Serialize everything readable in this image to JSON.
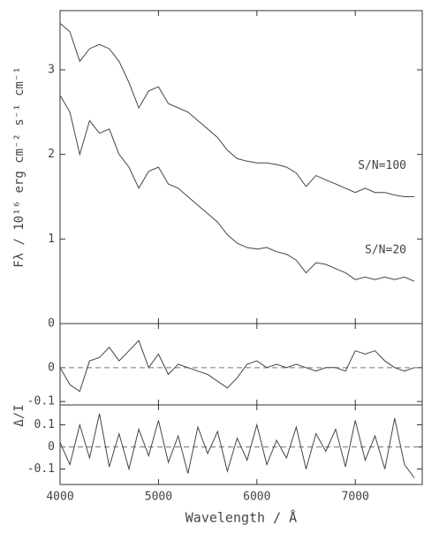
{
  "chart_data": [
    {
      "type": "line",
      "ylabel": "Fλ / 10¹⁶ erg cm⁻² s⁻¹ cm⁻¹",
      "x": [
        4000,
        4100,
        4200,
        4300,
        4400,
        4500,
        4600,
        4700,
        4800,
        4900,
        5000,
        5100,
        5200,
        5300,
        5400,
        5500,
        5600,
        5700,
        5800,
        5900,
        6000,
        6100,
        6200,
        6300,
        6400,
        6500,
        6600,
        6700,
        6800,
        6900,
        7000,
        7100,
        7200,
        7300,
        7400,
        7500,
        7600
      ],
      "series": [
        {
          "name": "S/N=100",
          "color": "#444444",
          "values": [
            3.55,
            3.45,
            3.1,
            3.25,
            3.3,
            3.25,
            3.1,
            2.85,
            2.55,
            2.75,
            2.8,
            2.6,
            2.55,
            2.5,
            2.4,
            2.3,
            2.2,
            2.05,
            1.95,
            1.92,
            1.9,
            1.9,
            1.88,
            1.85,
            1.78,
            1.62,
            1.75,
            1.7,
            1.65,
            1.6,
            1.55,
            1.6,
            1.55,
            1.55,
            1.52,
            1.5,
            1.5
          ]
        },
        {
          "name": "S/N=20",
          "color": "#444444",
          "values": [
            2.7,
            2.5,
            2.0,
            2.4,
            2.25,
            2.3,
            2.0,
            1.85,
            1.6,
            1.8,
            1.85,
            1.65,
            1.6,
            1.5,
            1.4,
            1.3,
            1.2,
            1.05,
            0.95,
            0.9,
            0.88,
            0.9,
            0.85,
            0.82,
            0.75,
            0.6,
            0.72,
            0.7,
            0.65,
            0.6,
            0.52,
            0.55,
            0.52,
            0.55,
            0.52,
            0.55,
            0.5
          ]
        }
      ],
      "xlim": [
        4000,
        7680
      ],
      "xticks": [
        4000,
        5000,
        6000,
        7000
      ],
      "xticklabels": false,
      "ylim": [
        0,
        3.7
      ],
      "yticks": [
        0,
        1,
        2,
        3
      ]
    },
    {
      "type": "line",
      "ylabel": "Δ/I",
      "x": [
        4000,
        4100,
        4200,
        4300,
        4400,
        4500,
        4600,
        4700,
        4800,
        4900,
        5000,
        5100,
        5200,
        5300,
        5400,
        5500,
        5600,
        5700,
        5800,
        5900,
        6000,
        6100,
        6200,
        6300,
        6400,
        6500,
        6600,
        6700,
        6800,
        6900,
        7000,
        7100,
        7200,
        7300,
        7400,
        7500,
        7600
      ],
      "series": [
        {
          "name": "S/N=100",
          "color": "#444444",
          "values": [
            0.0,
            -0.05,
            -0.07,
            0.02,
            0.03,
            0.06,
            0.02,
            0.05,
            0.08,
            0.0,
            0.04,
            -0.02,
            0.01,
            0.0,
            -0.01,
            -0.02,
            -0.04,
            -0.06,
            -0.03,
            0.01,
            0.02,
            0.0,
            0.01,
            0.0,
            0.01,
            0.0,
            -0.01,
            0.0,
            0.0,
            -0.01,
            0.05,
            0.04,
            0.05,
            0.02,
            0.0,
            -0.01,
            0.0
          ]
        }
      ],
      "xlim": [
        4000,
        7680
      ],
      "xticks": [
        4000,
        5000,
        6000,
        7000
      ],
      "xticklabels": false,
      "ylim": [
        -0.11,
        0.13
      ],
      "yticks": [
        0,
        -0.1
      ],
      "zero_line": true
    },
    {
      "type": "line",
      "xlabel": "Wavelength / Å",
      "x": [
        4000,
        4100,
        4200,
        4300,
        4400,
        4500,
        4600,
        4700,
        4800,
        4900,
        5000,
        5100,
        5200,
        5300,
        5400,
        5500,
        5600,
        5700,
        5800,
        5900,
        6000,
        6100,
        6200,
        6300,
        6400,
        6500,
        6600,
        6700,
        6800,
        6900,
        7000,
        7100,
        7200,
        7300,
        7400,
        7500,
        7600
      ],
      "series": [
        {
          "name": "S/N=20",
          "color": "#444444",
          "values": [
            0.02,
            -0.08,
            0.1,
            -0.05,
            0.15,
            -0.09,
            0.06,
            -0.1,
            0.08,
            -0.04,
            0.12,
            -0.07,
            0.05,
            -0.12,
            0.09,
            -0.03,
            0.07,
            -0.11,
            0.04,
            -0.06,
            0.1,
            -0.08,
            0.03,
            -0.05,
            0.09,
            -0.1,
            0.06,
            -0.02,
            0.08,
            -0.09,
            0.12,
            -0.06,
            0.05,
            -0.1,
            0.13,
            -0.08,
            -0.14
          ]
        }
      ],
      "xlim": [
        4000,
        7680
      ],
      "xticks": [
        4000,
        5000,
        6000,
        7000
      ],
      "xticklabels": true,
      "ylim": [
        -0.17,
        0.19
      ],
      "yticks": [
        0.1,
        0,
        -0.1
      ],
      "zero_line": true
    }
  ]
}
